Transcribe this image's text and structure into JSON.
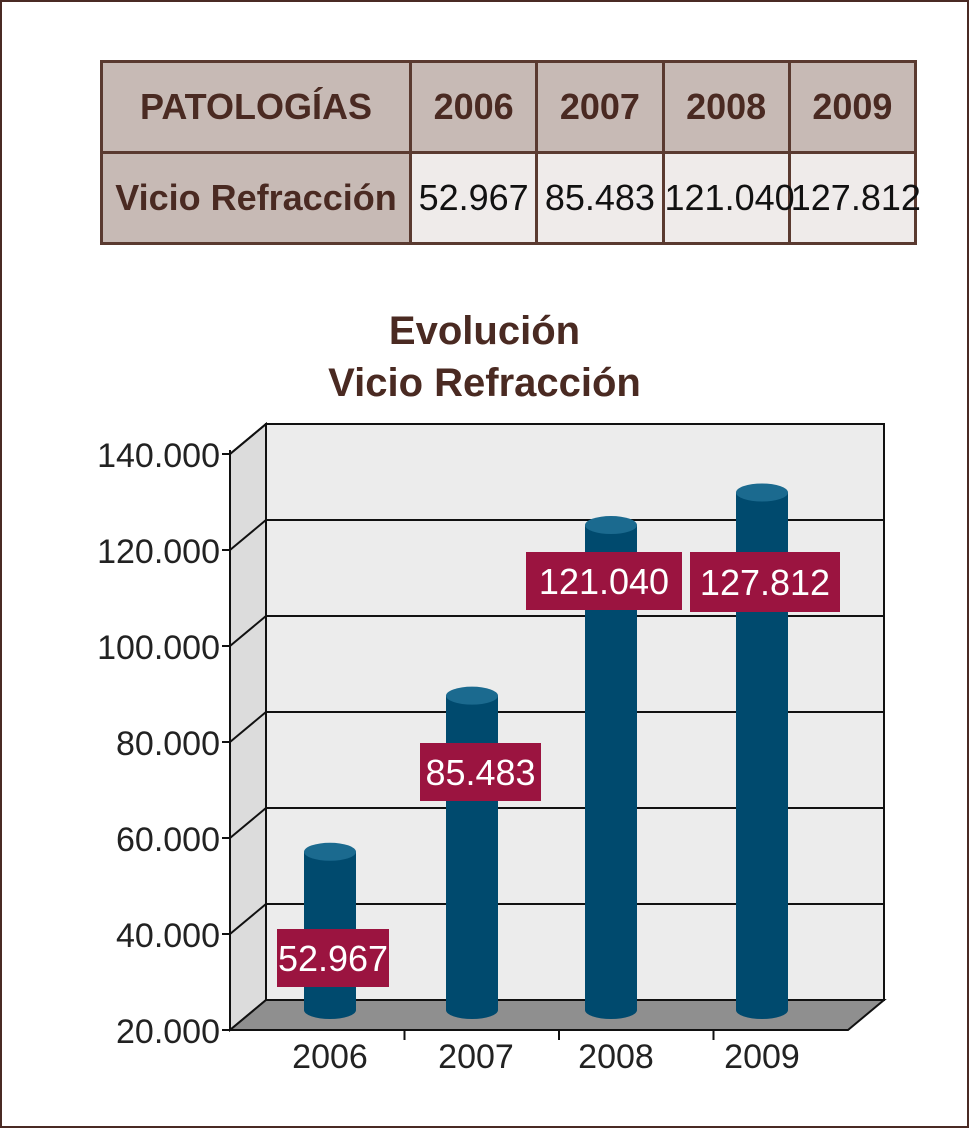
{
  "table": {
    "header": [
      "PATOLOGÍAS",
      "2006",
      "2007",
      "2008",
      "2009"
    ],
    "row_label": "Vicio Refracción",
    "row_values": [
      "52.967",
      "85.483",
      "121.040",
      "127.812"
    ]
  },
  "chart_data": {
    "type": "bar",
    "title_line1": "Evolución",
    "title_line2": "Vicio Refracción",
    "categories": [
      "2006",
      "2007",
      "2008",
      "2009"
    ],
    "values": [
      52967,
      85483,
      121040,
      127812
    ],
    "value_labels": [
      "52.967",
      "85.483",
      "121.040",
      "127.812"
    ],
    "ylim": [
      20000,
      140000
    ],
    "yticks": [
      20000,
      40000,
      60000,
      80000,
      100000,
      120000,
      140000
    ],
    "ytick_labels": [
      "20.000",
      "40.000",
      "60.000",
      "80.000",
      "100.000",
      "120.000",
      "140.000"
    ],
    "grid": true,
    "style": "3d-cylinder",
    "colors": {
      "bar": "#004a6e",
      "bar_top": "#1b6a8f",
      "label_bg": "#9b1440",
      "label_text": "#ffffff",
      "wall": "#ececec",
      "floor": "#8f8f8f",
      "title": "#4a2a22"
    }
  }
}
